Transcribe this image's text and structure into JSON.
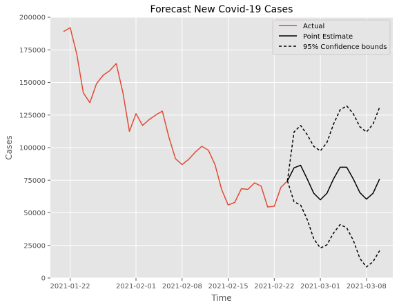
{
  "chart_data": {
    "type": "line",
    "title": "Forecast New Covid-19 Cases",
    "xlabel": "Time",
    "ylabel": "Cases",
    "ylim": [
      0,
      200000
    ],
    "xlim": [
      "2021-01-19",
      "2021-03-12"
    ],
    "grid": true,
    "legend_position": "top-right",
    "x_tick_labels": [
      "2021-01-22",
      "2021-02-01",
      "2021-02-08",
      "2021-02-15",
      "2021-02-22",
      "2021-03-01",
      "2021-03-08"
    ],
    "y_tick_labels": [
      "0",
      "25000",
      "50000",
      "75000",
      "100000",
      "125000",
      "150000",
      "175000",
      "200000"
    ],
    "series": [
      {
        "name": "Actual",
        "color": "#E24A33",
        "style": "solid",
        "x": [
          "2021-01-21",
          "2021-01-22",
          "2021-01-23",
          "2021-01-24",
          "2021-01-25",
          "2021-01-26",
          "2021-01-27",
          "2021-01-28",
          "2021-01-29",
          "2021-01-30",
          "2021-01-31",
          "2021-02-01",
          "2021-02-02",
          "2021-02-03",
          "2021-02-04",
          "2021-02-05",
          "2021-02-06",
          "2021-02-07",
          "2021-02-08",
          "2021-02-09",
          "2021-02-10",
          "2021-02-11",
          "2021-02-12",
          "2021-02-13",
          "2021-02-14",
          "2021-02-15",
          "2021-02-16",
          "2021-02-17",
          "2021-02-18",
          "2021-02-19",
          "2021-02-20",
          "2021-02-21",
          "2021-02-22",
          "2021-02-23",
          "2021-02-24"
        ],
        "y": [
          189000,
          192000,
          172000,
          142000,
          134500,
          149000,
          155500,
          159000,
          164500,
          142500,
          112500,
          126000,
          117000,
          121500,
          125000,
          128000,
          108000,
          91500,
          87000,
          91000,
          96500,
          101000,
          98000,
          87000,
          68000,
          56000,
          58000,
          68500,
          68000,
          73000,
          70500,
          54500,
          55000,
          69500,
          74500
        ]
      },
      {
        "name": "Point Estimate",
        "color": "#000000",
        "style": "solid",
        "x": [
          "2021-02-24",
          "2021-02-25",
          "2021-02-26",
          "2021-02-27",
          "2021-02-28",
          "2021-03-01",
          "2021-03-02",
          "2021-03-03",
          "2021-03-04",
          "2021-03-05",
          "2021-03-06",
          "2021-03-07",
          "2021-03-08",
          "2021-03-09",
          "2021-03-10"
        ],
        "y": [
          74500,
          84500,
          86500,
          76000,
          65000,
          60000,
          65000,
          76000,
          85000,
          85000,
          76000,
          65500,
          60500,
          65000,
          76000
        ]
      },
      {
        "name": "95% Confidence bounds",
        "color": "#000000",
        "style": "dashed",
        "x": [
          "2021-02-24",
          "2021-02-25",
          "2021-02-26",
          "2021-02-27",
          "2021-02-28",
          "2021-03-01",
          "2021-03-02",
          "2021-03-03",
          "2021-03-04",
          "2021-03-05",
          "2021-03-06",
          "2021-03-07",
          "2021-03-08",
          "2021-03-09",
          "2021-03-10"
        ],
        "y": [
          74500,
          112000,
          117000,
          110000,
          101000,
          97500,
          104000,
          118000,
          129000,
          132000,
          126000,
          116000,
          112000,
          118000,
          131000
        ]
      },
      {
        "name": "",
        "color": "#000000",
        "style": "dashed",
        "x": [
          "2021-02-24",
          "2021-02-25",
          "2021-02-26",
          "2021-02-27",
          "2021-02-28",
          "2021-03-01",
          "2021-03-02",
          "2021-03-03",
          "2021-03-04",
          "2021-03-05",
          "2021-03-06",
          "2021-03-07",
          "2021-03-08",
          "2021-03-09",
          "2021-03-10"
        ],
        "y": [
          74500,
          58500,
          56000,
          45000,
          30000,
          23000,
          25500,
          34500,
          41000,
          38500,
          29000,
          15000,
          8500,
          12500,
          21000
        ]
      }
    ]
  }
}
